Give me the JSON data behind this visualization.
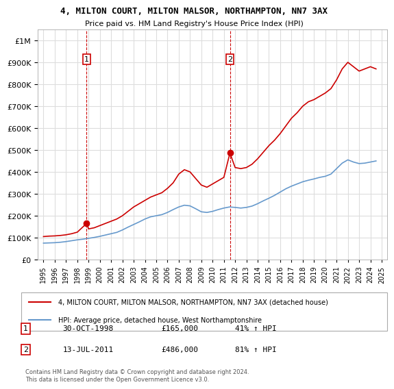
{
  "title": "4, MILTON COURT, MILTON MALSOR, NORTHAMPTON, NN7 3AX",
  "subtitle": "Price paid vs. HM Land Registry's House Price Index (HPI)",
  "red_label": "4, MILTON COURT, MILTON MALSOR, NORTHAMPTON, NN7 3AX (detached house)",
  "blue_label": "HPI: Average price, detached house, West Northamptonshire",
  "sale1_label": "1",
  "sale1_date": "30-OCT-1998",
  "sale1_price": "£165,000",
  "sale1_hpi": "41% ↑ HPI",
  "sale2_label": "2",
  "sale2_date": "13-JUL-2011",
  "sale2_price": "£486,000",
  "sale2_hpi": "81% ↑ HPI",
  "copyright": "Contains HM Land Registry data © Crown copyright and database right 2024.\nThis data is licensed under the Open Government Licence v3.0.",
  "red_color": "#cc0000",
  "blue_color": "#6699cc",
  "vline_color": "#cc0000",
  "grid_color": "#dddddd",
  "bg_color": "#ffffff",
  "sale1_x": 1998.83,
  "sale1_y": 165000,
  "sale2_x": 2011.54,
  "sale2_y": 486000,
  "ylim": [
    0,
    1050000
  ],
  "xlim": [
    1994.5,
    2025.5
  ],
  "red_x": [
    1995.0,
    1995.5,
    1996.0,
    1996.5,
    1997.0,
    1997.5,
    1998.0,
    1998.83,
    1999.0,
    1999.5,
    2000.0,
    2000.5,
    2001.0,
    2001.5,
    2002.0,
    2002.5,
    2003.0,
    2003.5,
    2004.0,
    2004.5,
    2005.0,
    2005.5,
    2006.0,
    2006.5,
    2007.0,
    2007.5,
    2008.0,
    2008.5,
    2009.0,
    2009.5,
    2010.0,
    2010.5,
    2011.0,
    2011.54,
    2012.0,
    2012.5,
    2013.0,
    2013.5,
    2014.0,
    2014.5,
    2015.0,
    2015.5,
    2016.0,
    2016.5,
    2017.0,
    2017.5,
    2018.0,
    2018.5,
    2019.0,
    2019.5,
    2020.0,
    2020.5,
    2021.0,
    2021.5,
    2022.0,
    2022.5,
    2023.0,
    2023.5,
    2024.0,
    2024.5
  ],
  "red_y": [
    105000,
    107000,
    108000,
    110000,
    113000,
    118000,
    125000,
    165000,
    140000,
    145000,
    155000,
    165000,
    175000,
    185000,
    200000,
    220000,
    240000,
    255000,
    270000,
    285000,
    295000,
    305000,
    325000,
    350000,
    390000,
    410000,
    400000,
    370000,
    340000,
    330000,
    345000,
    360000,
    375000,
    486000,
    420000,
    415000,
    420000,
    435000,
    460000,
    490000,
    520000,
    545000,
    575000,
    610000,
    645000,
    670000,
    700000,
    720000,
    730000,
    745000,
    760000,
    780000,
    820000,
    870000,
    900000,
    880000,
    860000,
    870000,
    880000,
    870000
  ],
  "blue_x": [
    1995.0,
    1995.5,
    1996.0,
    1996.5,
    1997.0,
    1997.5,
    1998.0,
    1998.5,
    1999.0,
    1999.5,
    2000.0,
    2000.5,
    2001.0,
    2001.5,
    2002.0,
    2002.5,
    2003.0,
    2003.5,
    2004.0,
    2004.5,
    2005.0,
    2005.5,
    2006.0,
    2006.5,
    2007.0,
    2007.5,
    2008.0,
    2008.5,
    2009.0,
    2009.5,
    2010.0,
    2010.5,
    2011.0,
    2011.5,
    2012.0,
    2012.5,
    2013.0,
    2013.5,
    2014.0,
    2014.5,
    2015.0,
    2015.5,
    2016.0,
    2016.5,
    2017.0,
    2017.5,
    2018.0,
    2018.5,
    2019.0,
    2019.5,
    2020.0,
    2020.5,
    2021.0,
    2021.5,
    2022.0,
    2022.5,
    2023.0,
    2023.5,
    2024.0,
    2024.5
  ],
  "blue_y": [
    75000,
    76000,
    77000,
    79000,
    82000,
    86000,
    90000,
    93000,
    97000,
    101000,
    106000,
    112000,
    118000,
    124000,
    135000,
    148000,
    160000,
    172000,
    185000,
    195000,
    200000,
    205000,
    215000,
    228000,
    240000,
    248000,
    245000,
    232000,
    218000,
    215000,
    220000,
    228000,
    235000,
    240000,
    238000,
    235000,
    238000,
    244000,
    255000,
    268000,
    280000,
    293000,
    308000,
    323000,
    335000,
    345000,
    355000,
    362000,
    368000,
    375000,
    380000,
    390000,
    415000,
    440000,
    455000,
    445000,
    438000,
    440000,
    445000,
    450000
  ]
}
